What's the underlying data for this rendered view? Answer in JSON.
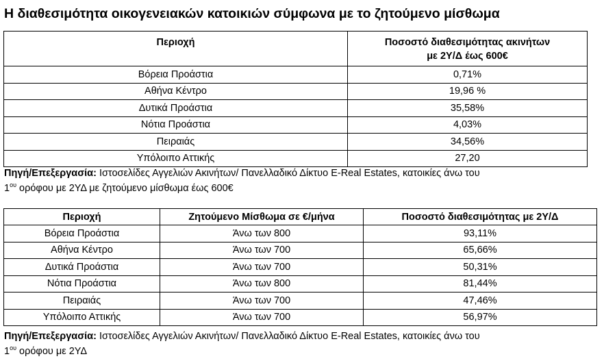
{
  "title": "Η διαθεσιμότητα οικογενειακών κατοικιών σύμφωνα με το ζητούμενο μίσθωμα",
  "table1": {
    "headers": {
      "region": "Περιοχή",
      "availability_line1": "Ποσοστό διαθεσιμότητας ακινήτων",
      "availability_line2": "με 2Υ/Δ έως 600€"
    },
    "rows": [
      {
        "region": "Βόρεια Προάστια",
        "availability": "0,71%"
      },
      {
        "region": "Αθήνα Κέντρο",
        "availability": "19,96 %"
      },
      {
        "region": "Δυτικά Προάστια",
        "availability": "35,58%"
      },
      {
        "region": "Νότια Προάστια",
        "availability": "4,03%"
      },
      {
        "region": "Πειραιάς",
        "availability": "34,56%"
      },
      {
        "region": "Υπόλοιπο Αττικής",
        "availability": "27,20"
      }
    ]
  },
  "source1": {
    "label": "Πηγή/Επεξεργασία:",
    "text_part1": " Ιστοσελίδες Αγγελιών Ακινήτων/ Πανελλαδικό Δίκτυο E-Real Estates, κατοικίες άνω του",
    "ordinal_number": "1",
    "ordinal_suffix": "ου",
    "text_part2": " ορόφου με 2ΥΔ με ζητούμενο μίσθωμα έως 600€"
  },
  "table2": {
    "headers": {
      "region": "Περιοχή",
      "rent": "Ζητούμενο Μίσθωμα σε €/μήνα",
      "availability": "Ποσοστό διαθεσιμότητας με 2Υ/Δ"
    },
    "rows": [
      {
        "region": "Βόρεια Προάστια",
        "rent": "Άνω των 800",
        "availability": "93,11%"
      },
      {
        "region": "Αθήνα Κέντρο",
        "rent": "Άνω των 700",
        "availability": "65,66%"
      },
      {
        "region": "Δυτικά Προάστια",
        "rent": "Άνω των 700",
        "availability": "50,31%"
      },
      {
        "region": "Νότια Προάστια",
        "rent": "Άνω των 800",
        "availability": "81,44%"
      },
      {
        "region": "Πειραιάς",
        "rent": "Άνω των 700",
        "availability": "47,46%"
      },
      {
        "region": "Υπόλοιπο Αττικής",
        "rent": "Άνω των 700",
        "availability": "56,97%"
      }
    ]
  },
  "source2": {
    "label": "Πηγή/Επεξεργασία:",
    "text_part1": " Ιστοσελίδες Αγγελιών Ακινήτων/ Πανελλαδικό Δίκτυο E-Real Estates, κατοικίες άνω του",
    "ordinal_number": "1",
    "ordinal_suffix": "ου",
    "text_part2": " ορόφου με 2ΥΔ"
  }
}
